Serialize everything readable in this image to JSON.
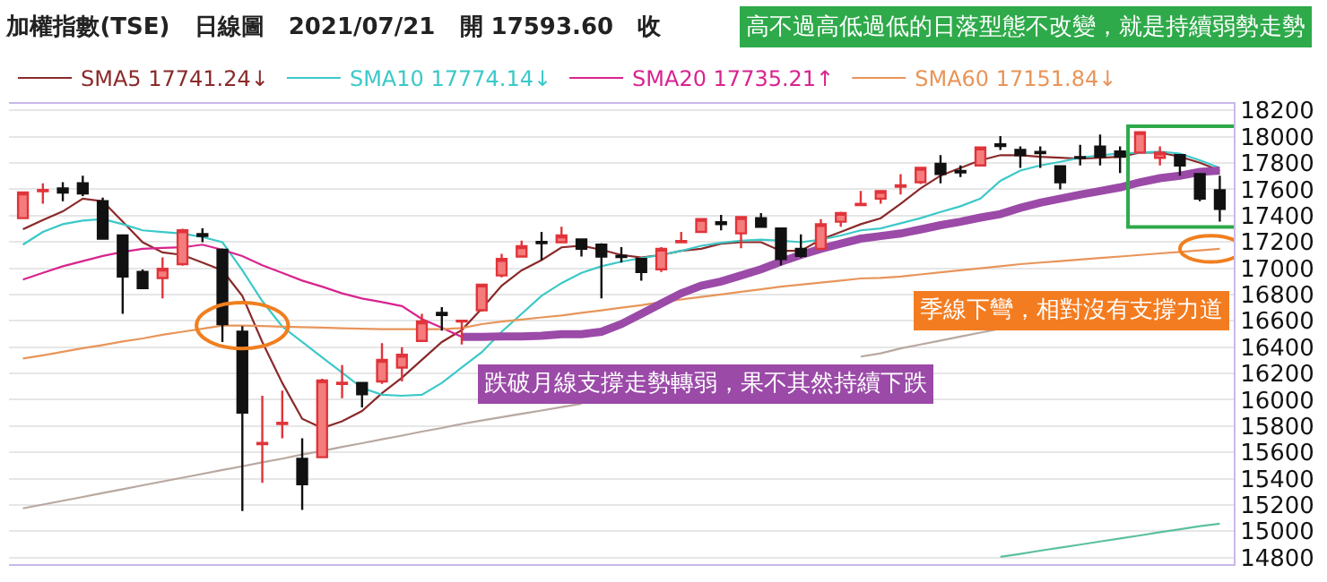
{
  "chart_data": {
    "type": "candlestick",
    "title": "加權指數(TSE)   日線圖   2021/07/21   開 17593.60   收",
    "categories": [
      null,
      null,
      null,
      null,
      null,
      null,
      null,
      null,
      null,
      null,
      null,
      null,
      null,
      null,
      null,
      null,
      null,
      null,
      null,
      null,
      null,
      null,
      null,
      null,
      null,
      null,
      null,
      null,
      null,
      null,
      null,
      null,
      null,
      null,
      null,
      null,
      null,
      null,
      null,
      null,
      null,
      null,
      null,
      null,
      null,
      null,
      null,
      null,
      null,
      null,
      null,
      null,
      null,
      null,
      null,
      null,
      null,
      null,
      null,
      null,
      null
    ],
    "ohlc": [
      [
        17381,
        17576,
        17381,
        17576
      ],
      [
        17585,
        17646,
        17490,
        17595
      ],
      [
        17607,
        17654,
        17510,
        17576
      ],
      [
        17646,
        17704,
        17549,
        17568
      ],
      [
        17510,
        17537,
        17225,
        17225
      ],
      [
        17249,
        17249,
        16653,
        16937
      ],
      [
        16972,
        16990,
        16840,
        16848
      ],
      [
        16926,
        17082,
        16770,
        16996
      ],
      [
        17031,
        17300,
        17020,
        17288
      ],
      [
        17260,
        17303,
        17198,
        17245
      ],
      [
        17140,
        17150,
        16439,
        16575
      ],
      [
        16517,
        16560,
        15154,
        15902
      ],
      [
        15662,
        16030,
        15368,
        15672
      ],
      [
        15815,
        16069,
        15707,
        15825
      ],
      [
        15551,
        15707,
        15162,
        15357
      ],
      [
        15563,
        16160,
        15555,
        16147
      ],
      [
        16120,
        16264,
        16011,
        16130
      ],
      [
        16128,
        16130,
        15941,
        16042
      ],
      [
        16139,
        16431,
        16120,
        16303
      ],
      [
        16245,
        16400,
        16139,
        16342
      ],
      [
        16447,
        16653,
        16440,
        16595
      ],
      [
        16660,
        16704,
        16525,
        16645
      ],
      [
        16595,
        16600,
        16420,
        16600
      ],
      [
        16680,
        16880,
        16670,
        16875
      ],
      [
        16945,
        17109,
        16930,
        17070
      ],
      [
        17089,
        17210,
        17080,
        17167
      ],
      [
        17200,
        17276,
        17062,
        17190
      ],
      [
        17198,
        17315,
        17190,
        17249
      ],
      [
        17218,
        17218,
        17089,
        17148
      ],
      [
        17179,
        17190,
        16770,
        17089
      ],
      [
        17095,
        17160,
        17043,
        17085
      ],
      [
        17070,
        17070,
        16906,
        16972
      ],
      [
        16992,
        17160,
        16972,
        17148
      ],
      [
        17198,
        17276,
        17198,
        17207
      ],
      [
        17276,
        17380,
        17270,
        17374
      ],
      [
        17350,
        17405,
        17288,
        17335
      ],
      [
        17265,
        17395,
        17152,
        17389
      ],
      [
        17381,
        17420,
        17310,
        17315
      ],
      [
        17303,
        17310,
        17023,
        17070
      ],
      [
        17148,
        17257,
        17080,
        17093
      ],
      [
        17148,
        17374,
        17140,
        17335
      ],
      [
        17354,
        17430,
        17315,
        17420
      ],
      [
        17480,
        17587,
        17480,
        17490
      ],
      [
        17529,
        17590,
        17490,
        17587
      ],
      [
        17620,
        17716,
        17560,
        17630
      ],
      [
        17654,
        17770,
        17640,
        17763
      ],
      [
        17794,
        17860,
        17646,
        17716
      ],
      [
        17740,
        17782,
        17693,
        17728
      ],
      [
        17782,
        17925,
        17775,
        17918
      ],
      [
        17942,
        18004,
        17899,
        17930
      ],
      [
        17899,
        17926,
        17763,
        17860
      ],
      [
        17885,
        17926,
        17763,
        17875
      ],
      [
        17775,
        17780,
        17599,
        17654
      ],
      [
        17846,
        17938,
        17782,
        17840
      ],
      [
        17926,
        18016,
        17782,
        17848
      ],
      [
        17887,
        17926,
        17724,
        17848
      ],
      [
        17880,
        18040,
        17870,
        18035
      ],
      [
        17840,
        17926,
        17782,
        17880
      ],
      [
        17860,
        17860,
        17704,
        17782
      ],
      [
        17716,
        17716,
        17510,
        17529
      ],
      [
        17594,
        17704,
        17354,
        17451
      ]
    ],
    "series": [
      {
        "type": "line",
        "name": "SMA5 17741.24↓",
        "color": "#8b2a2a",
        "values": [
          17296,
          17366,
          17432,
          17529,
          17510,
          17354,
          17198,
          17120,
          17101,
          17043,
          16984,
          16789,
          16439,
          16128,
          15855,
          15785,
          15836,
          15914,
          16050,
          16167,
          16303,
          16439,
          16530,
          16692,
          16867,
          16984,
          17062,
          17159,
          17171,
          17140,
          17101,
          17081,
          17101,
          17132,
          17148,
          17187,
          17198,
          17198,
          17132,
          17132,
          17218,
          17276,
          17335,
          17380,
          17490,
          17607,
          17704,
          17763,
          17821,
          17860,
          17860,
          17848,
          17841,
          17833,
          17841,
          17848,
          17880,
          17880,
          17848,
          17802,
          17743
        ]
      },
      {
        "type": "line",
        "name": "SMA10 17774.14↓",
        "color": "#3cc8c8",
        "values": [
          17179,
          17276,
          17335,
          17362,
          17374,
          17335,
          17288,
          17276,
          17264,
          17237,
          17198,
          16984,
          16750,
          16556,
          16439,
          16322,
          16206,
          16089,
          16038,
          16030,
          16038,
          16128,
          16245,
          16361,
          16517,
          16653,
          16790,
          16887,
          16965,
          17015,
          17050,
          17077,
          17101,
          17132,
          17171,
          17194,
          17210,
          17218,
          17210,
          17198,
          17218,
          17249,
          17288,
          17303,
          17342,
          17381,
          17428,
          17471,
          17529,
          17665,
          17743,
          17782,
          17809,
          17840,
          17860,
          17872,
          17880,
          17887,
          17872,
          17821,
          17763
        ]
      },
      {
        "type": "line",
        "name": "SMA20 17735.21↑",
        "color": "#d8248f",
        "values": [
          16914,
          16965,
          17015,
          17054,
          17093,
          17124,
          17148,
          17155,
          17159,
          17179,
          17140,
          17093,
          17023,
          16965,
          16906,
          16860,
          16809,
          16770,
          16743,
          16712,
          16614,
          16548,
          16478,
          null,
          null,
          null,
          null,
          null,
          null,
          null,
          null,
          null,
          null,
          null,
          null,
          null,
          null,
          null,
          null,
          null,
          null,
          null,
          null,
          null,
          null,
          null,
          null,
          null,
          null,
          null,
          null,
          null,
          null,
          null,
          null,
          null,
          null,
          null,
          null,
          null,
          null
        ]
      },
      {
        "type": "line",
        "name": "SMA60 17151.84↓",
        "color": "#e8955a",
        "values": [
          16314,
          16338,
          16365,
          16392,
          16416,
          16443,
          16466,
          16494,
          16517,
          16540,
          16564,
          16564,
          16560,
          16556,
          16552,
          16548,
          16544,
          16540,
          16536,
          16536,
          16536,
          16536,
          16545,
          16575,
          16595,
          16610,
          16626,
          16641,
          16661,
          16680,
          16700,
          16719,
          16743,
          16762,
          16782,
          16801,
          16821,
          16840,
          16860,
          16875,
          16891,
          16906,
          16922,
          16926,
          16937,
          16953,
          16969,
          16984,
          17000,
          17015,
          17031,
          17043,
          17054,
          17066,
          17078,
          17089,
          17101,
          17113,
          17124,
          17136,
          17148
        ]
      },
      {
        "type": "line",
        "color": "#9b4aa8",
        "values": [
          null,
          null,
          null,
          null,
          null,
          null,
          null,
          null,
          null,
          null,
          null,
          null,
          null,
          null,
          null,
          null,
          null,
          null,
          null,
          null,
          null,
          null,
          16478,
          16478,
          16482,
          16482,
          16486,
          16498,
          16498,
          16517,
          16575,
          16653,
          16731,
          16809,
          16867,
          16899,
          16945,
          16992,
          17050,
          17101,
          17148,
          17187,
          17225,
          17245,
          17264,
          17295,
          17327,
          17354,
          17385,
          17412,
          17459,
          17498,
          17529,
          17560,
          17587,
          17615,
          17654,
          17685,
          17704,
          17732,
          17743
        ]
      },
      {
        "type": "line",
        "color": "#b8a8a0",
        "values": [
          15174,
          15203,
          15232,
          15261,
          15291,
          15320,
          15349,
          15378,
          15407,
          15436,
          15466,
          15494,
          15524,
          15552,
          15583,
          15611,
          15641,
          15669,
          15699,
          15727,
          15758,
          15785,
          15816,
          15842,
          15867,
          15893,
          15918,
          15944,
          15970,
          null,
          null,
          null,
          null,
          null,
          null,
          null,
          null,
          null,
          null,
          null,
          null,
          null,
          16328,
          16353,
          16390,
          16420,
          16450,
          16480,
          16510,
          16540,
          null,
          null,
          null,
          null,
          null,
          null,
          null,
          null,
          null,
          null,
          null
        ]
      },
      {
        "type": "line",
        "color": "#5cc0a0",
        "values": [
          null,
          null,
          null,
          null,
          null,
          null,
          null,
          null,
          null,
          null,
          null,
          null,
          null,
          null,
          null,
          null,
          null,
          null,
          null,
          null,
          null,
          null,
          null,
          null,
          null,
          null,
          null,
          null,
          null,
          null,
          null,
          null,
          null,
          null,
          null,
          null,
          null,
          null,
          null,
          null,
          null,
          null,
          null,
          null,
          null,
          null,
          null,
          null,
          null,
          14805,
          14828,
          14852,
          14875,
          14898,
          14922,
          14945,
          14968,
          14992,
          15015,
          15038,
          15057
        ]
      }
    ],
    "annotations": [
      "高不過高低過低的日落型態不改變，就是持續弱勢走勢",
      "季線下彎，相對沒有支撐力道",
      "跌破月線支撐走勢轉弱，果不其然持續下跌"
    ],
    "ylim": [
      14750,
      18250
    ],
    "yticks": [
      14800,
      15000,
      15200,
      15400,
      15600,
      15800,
      16000,
      16200,
      16400,
      16600,
      16800,
      17000,
      17200,
      17400,
      17600,
      17800,
      18000,
      18200
    ],
    "grid": "y",
    "legend": "top left",
    "tick_labels": "y"
  }
}
